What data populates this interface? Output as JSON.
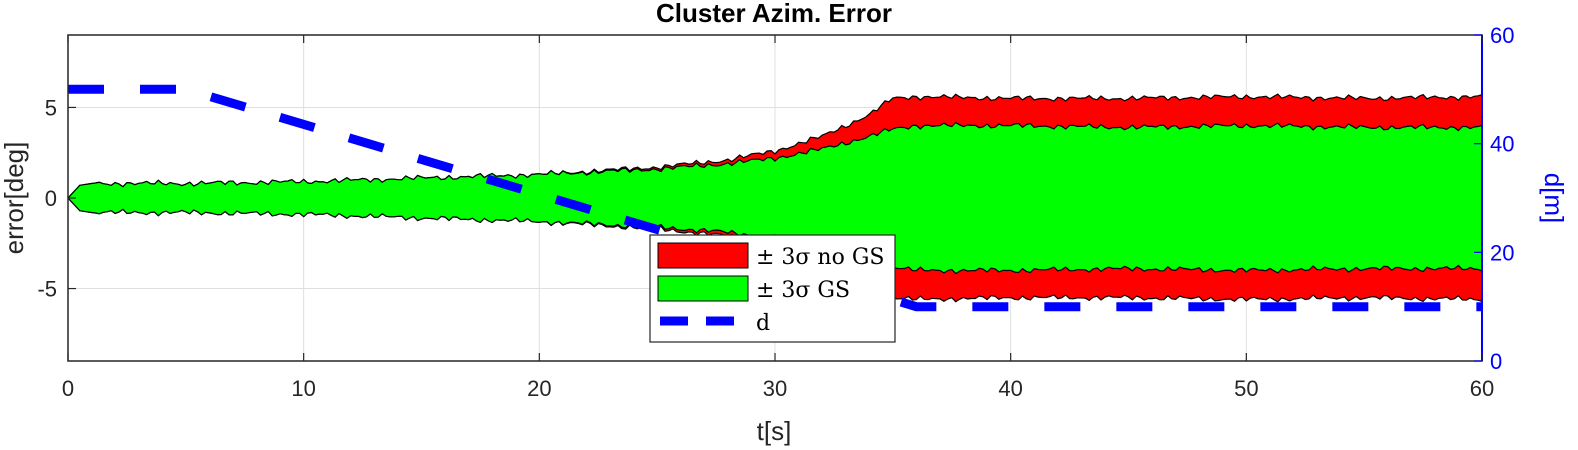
{
  "chart_data": {
    "type": "area",
    "title": "Cluster Azim. Error",
    "xlabel": "t[s]",
    "ylabel": "error[deg]",
    "ylabel_right": "d[m]",
    "xlim": [
      0,
      60
    ],
    "ylim": [
      -9,
      9
    ],
    "ylim_right": [
      0,
      60
    ],
    "xticks": [
      0,
      10,
      20,
      30,
      40,
      50,
      60
    ],
    "yticks": [
      -5,
      0,
      5
    ],
    "yticks_right": [
      0,
      20,
      40,
      60
    ],
    "grid": true,
    "legend_position": "bottom-center",
    "colors": {
      "no_gs_fill": "#ff0000",
      "gs_fill": "#00ff00",
      "d_line": "#0000ff",
      "outline": "#000000",
      "right_axis": "#0000ff"
    },
    "series": [
      {
        "name": "± 3σ no GS",
        "x": [
          0,
          0.5,
          1,
          5,
          10,
          15,
          20,
          25,
          28,
          30,
          32,
          34,
          35,
          36,
          40,
          45,
          50,
          55,
          60
        ],
        "upper": [
          0,
          0.7,
          0.8,
          0.8,
          0.9,
          1.1,
          1.3,
          1.7,
          2.1,
          2.6,
          3.4,
          4.6,
          5.5,
          5.6,
          5.5,
          5.5,
          5.6,
          5.5,
          5.6
        ],
        "lower": [
          0,
          -0.7,
          -0.8,
          -0.8,
          -0.9,
          -1.1,
          -1.3,
          -1.7,
          -2.1,
          -2.6,
          -3.4,
          -4.6,
          -5.5,
          -5.6,
          -5.5,
          -5.5,
          -5.6,
          -5.5,
          -5.6
        ]
      },
      {
        "name": "± 3σ GS",
        "x": [
          0,
          0.5,
          1,
          5,
          10,
          15,
          20,
          25,
          28,
          30,
          32,
          34,
          35,
          36,
          40,
          45,
          50,
          55,
          60
        ],
        "upper": [
          0,
          0.7,
          0.8,
          0.8,
          0.9,
          1.1,
          1.3,
          1.6,
          1.9,
          2.2,
          2.7,
          3.4,
          3.8,
          4.0,
          4.0,
          3.9,
          4.0,
          3.9,
          3.9
        ],
        "lower": [
          0,
          -0.7,
          -0.8,
          -0.8,
          -0.9,
          -1.1,
          -1.3,
          -1.6,
          -1.9,
          -2.2,
          -2.7,
          -3.4,
          -3.8,
          -4.0,
          -4.0,
          -3.9,
          -4.0,
          -3.9,
          -3.9
        ]
      },
      {
        "name": "d",
        "axis": "right",
        "x": [
          0,
          5,
          36,
          60
        ],
        "values": [
          50,
          50,
          10,
          10
        ]
      }
    ]
  }
}
